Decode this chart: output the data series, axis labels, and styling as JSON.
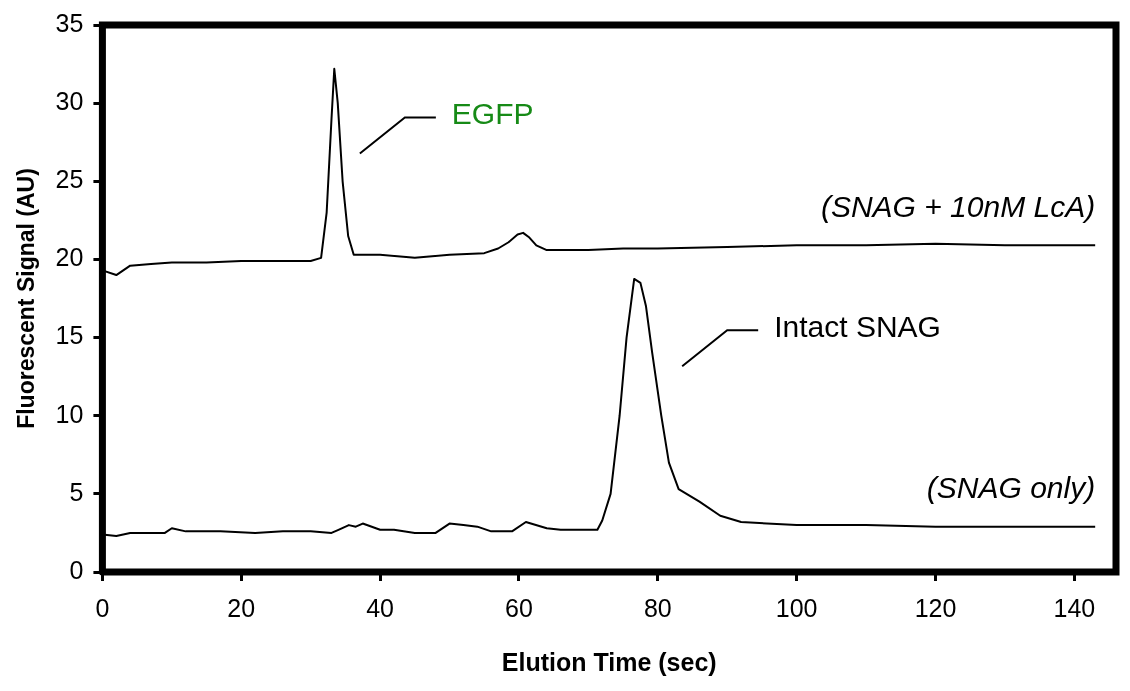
{
  "chart_data": {
    "type": "line",
    "xlabel": "Elution Time (sec)",
    "ylabel": "Fluorescent Signal (AU)",
    "xlim": [
      0,
      146
    ],
    "xticks": [
      0,
      20,
      40,
      60,
      80,
      100,
      120,
      140
    ],
    "ylim": [
      0,
      35
    ],
    "yticks": [
      0,
      5,
      10,
      15,
      20,
      25,
      30,
      35
    ],
    "grid": false,
    "legend": false,
    "marker": "none",
    "line_style": "solid",
    "series": [
      {
        "name": "(SNAG + 10nM LcA)",
        "color": "#000000",
        "x": [
          0,
          2,
          4,
          7,
          10,
          15,
          20,
          25,
          30,
          31.5,
          32.3,
          33,
          33.4,
          33.9,
          34.6,
          35.4,
          36.2,
          38,
          40,
          45,
          50,
          55,
          57,
          58.5,
          59.8,
          60.6,
          61.5,
          62.5,
          64,
          66,
          70,
          75,
          80,
          90,
          100,
          110,
          120,
          130,
          140,
          143
        ],
        "values": [
          19.3,
          19.0,
          19.6,
          19.7,
          19.8,
          19.8,
          19.9,
          19.9,
          19.9,
          20.1,
          23,
          29,
          32.2,
          30,
          25,
          21.5,
          20.3,
          20.3,
          20.3,
          20.1,
          20.3,
          20.4,
          20.7,
          21.1,
          21.6,
          21.7,
          21.4,
          20.9,
          20.6,
          20.6,
          20.6,
          20.7,
          20.7,
          20.8,
          20.9,
          20.9,
          21.0,
          20.9,
          20.9,
          20.9
        ]
      },
      {
        "name": "(SNAG only)",
        "color": "#000000",
        "x": [
          0,
          2,
          4,
          9,
          10,
          12,
          17,
          22,
          26,
          30,
          33,
          34,
          35.5,
          36.5,
          37.5,
          40,
          42,
          45,
          48,
          50,
          52,
          54,
          56,
          59,
          61,
          64,
          66,
          70,
          71.3,
          72,
          73.2,
          74.5,
          75.5,
          76.6,
          77.5,
          78.3,
          79.2,
          80.5,
          81.6,
          83,
          86,
          89,
          92,
          100,
          110,
          120,
          130,
          140,
          143
        ],
        "values": [
          2.4,
          2.3,
          2.5,
          2.5,
          2.8,
          2.6,
          2.6,
          2.5,
          2.6,
          2.6,
          2.5,
          2.7,
          3.0,
          2.9,
          3.1,
          2.7,
          2.7,
          2.5,
          2.5,
          3.1,
          3.0,
          2.9,
          2.6,
          2.6,
          3.2,
          2.8,
          2.7,
          2.7,
          2.7,
          3.3,
          5,
          10,
          15,
          18.75,
          18.5,
          17,
          14,
          10,
          7,
          5.3,
          4.5,
          3.6,
          3.2,
          3.0,
          3.0,
          2.9,
          2.9,
          2.9,
          2.9
        ]
      }
    ],
    "annotations": [
      "EGFP",
      "Intact SNAG"
    ]
  }
}
